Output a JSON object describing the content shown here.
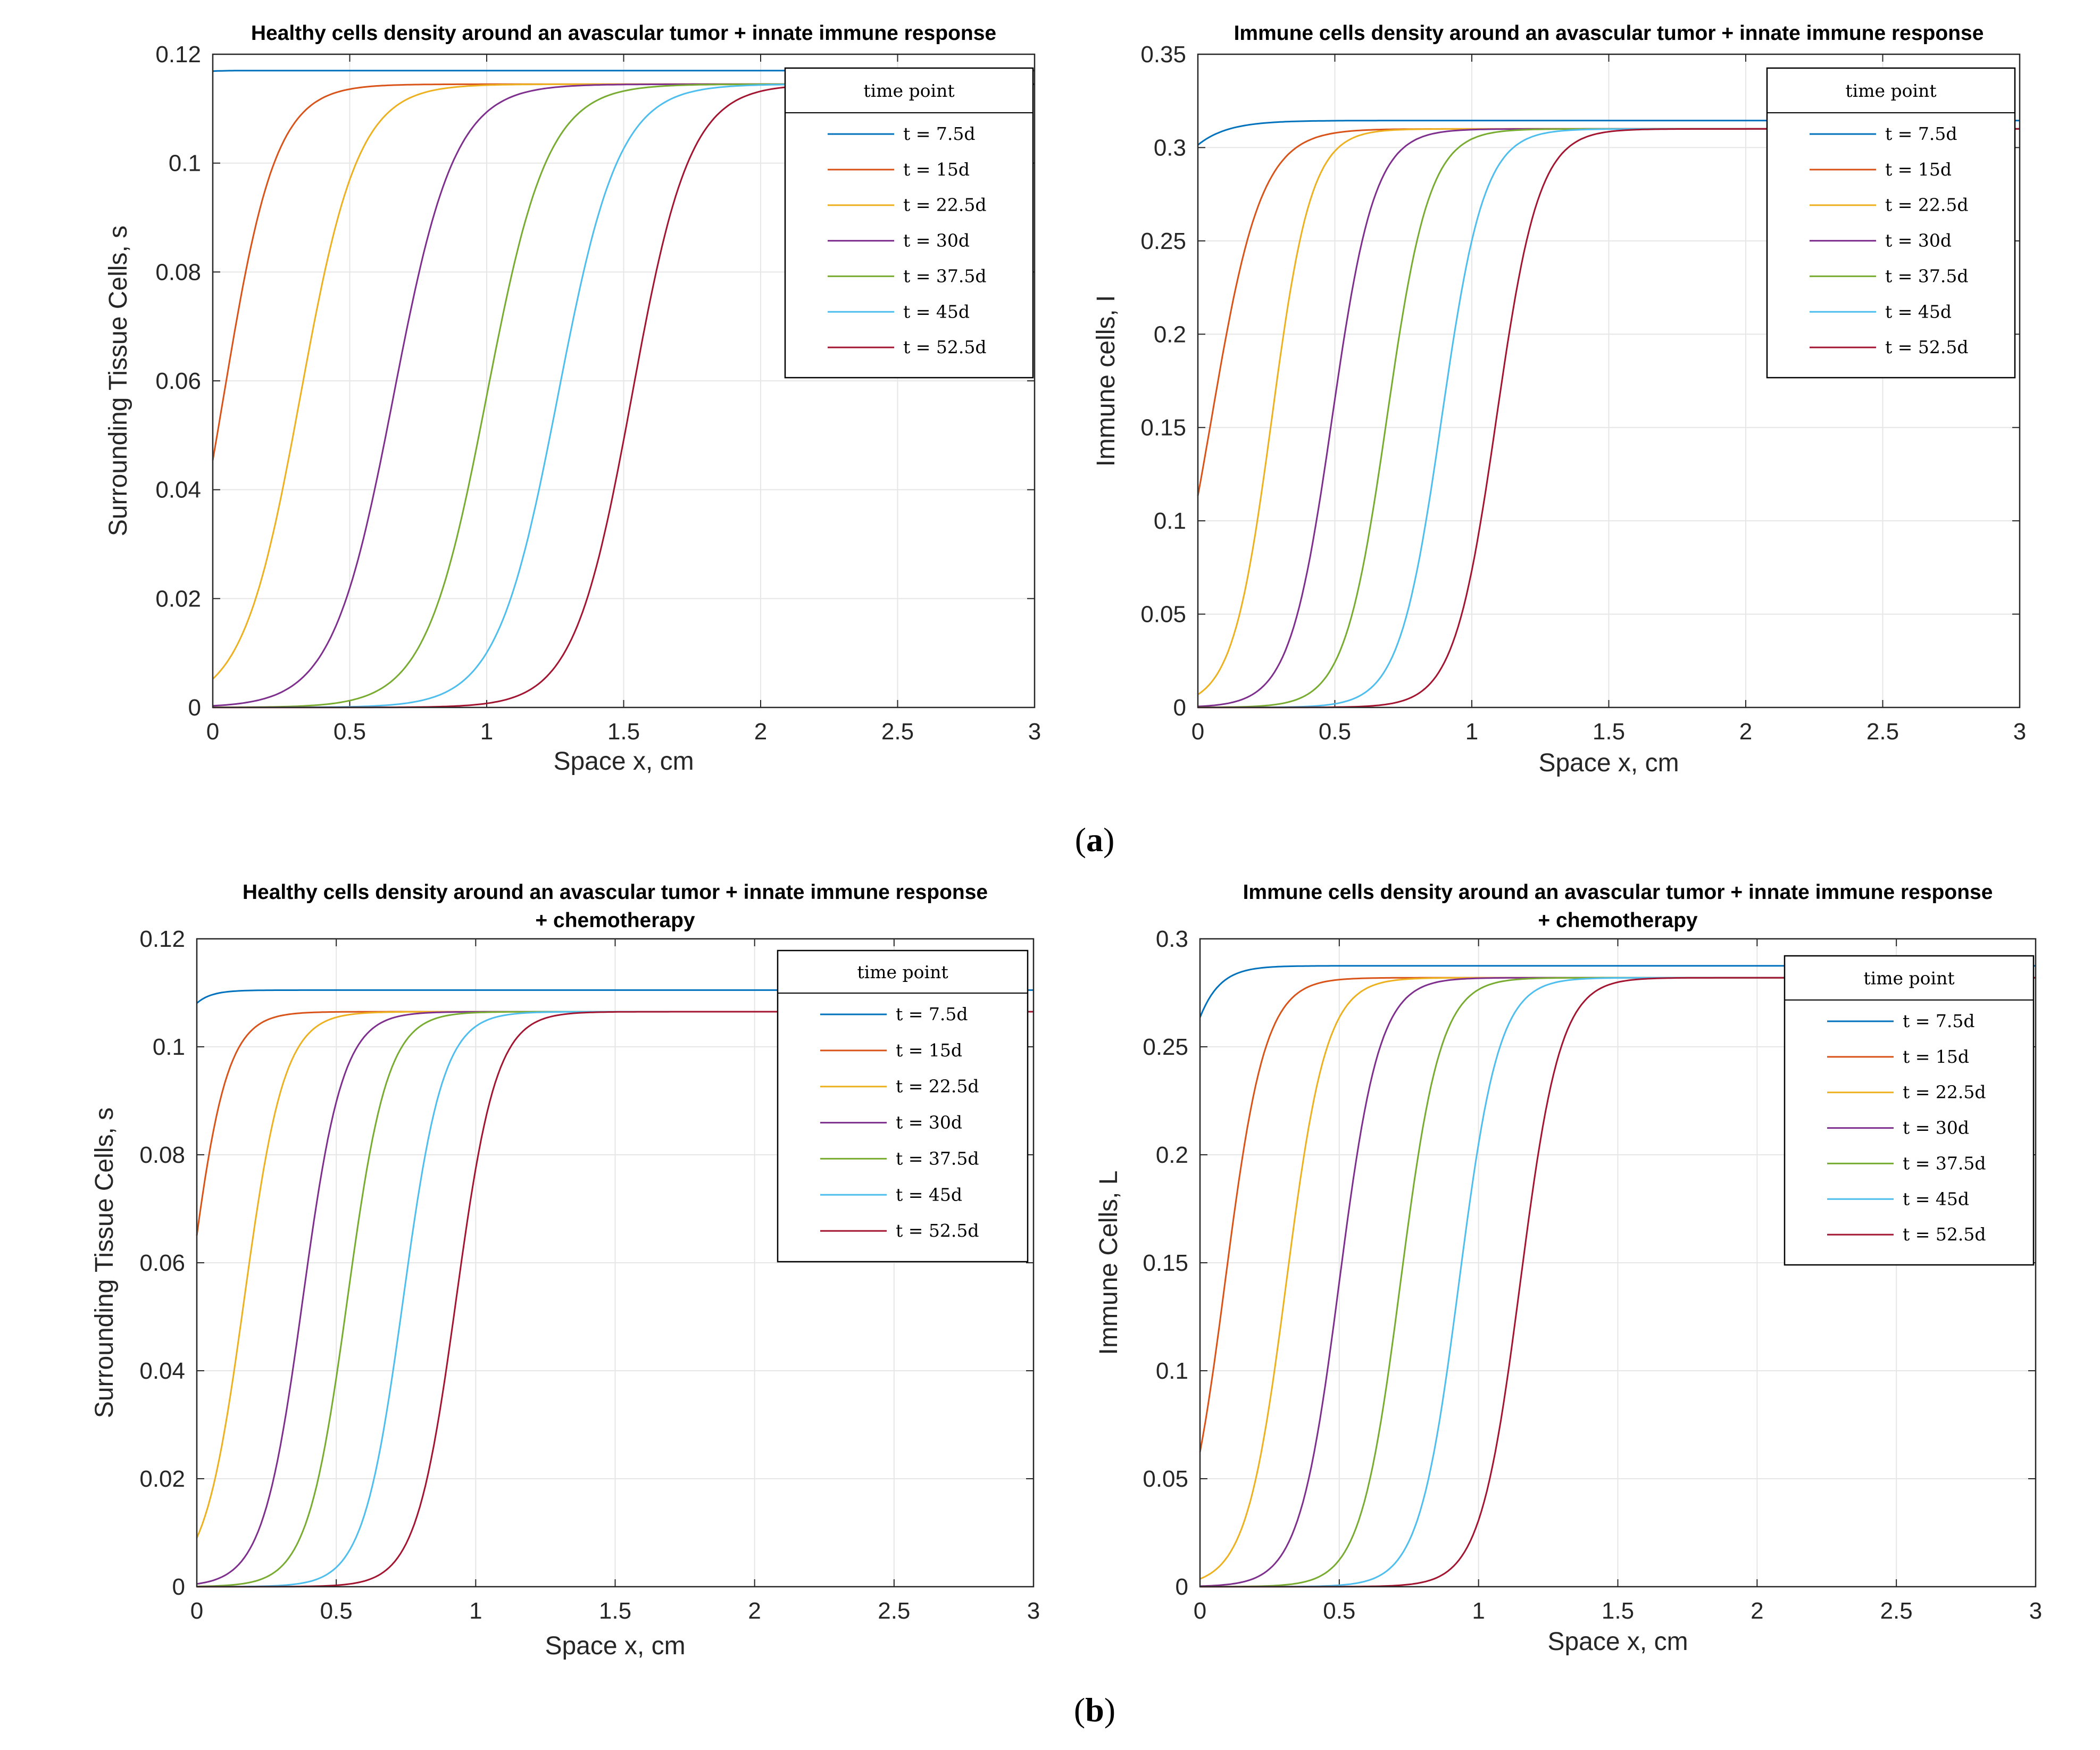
{
  "colors": {
    "series": [
      "#0072BD",
      "#D95319",
      "#EDB120",
      "#7E2F8E",
      "#77AC30",
      "#4DBEEE",
      "#A2142F"
    ],
    "grid": "#e6e6e6",
    "axis": "#262626"
  },
  "panel_labels": {
    "a": "a",
    "b": "b"
  },
  "legend_title": "time point",
  "legend_labels": [
    "t = 7.5d",
    "t = 15d",
    "t = 22.5d",
    "t = 30d",
    "t = 37.5d",
    "t = 45d",
    "t = 52.5d"
  ],
  "chart_data": [
    {
      "id": "a-left",
      "type": "line",
      "title_lines": [
        "Healthy cells density around an avascular tumor + innate immune response"
      ],
      "xlabel": "Space x, cm",
      "ylabel": "Surrounding Tissue Cells, s",
      "xlim": [
        0,
        3
      ],
      "ylim": [
        0,
        0.12
      ],
      "xticks": [
        "0",
        "0.5",
        "1",
        "1.5",
        "2",
        "2.5",
        "3"
      ],
      "yticks": [
        "0",
        "0.02",
        "0.04",
        "0.06",
        "0.08",
        "0.1",
        "0.12"
      ],
      "grid": true,
      "legend_position": "top-right",
      "series": [
        {
          "name": "t = 7.5d",
          "x0": -0.25,
          "k": 28,
          "plateau": 0.117
        },
        {
          "name": "t = 15d",
          "x0": 0.04,
          "k": 10.5,
          "plateau": 0.1145
        },
        {
          "name": "t = 22.5d",
          "x0": 0.32,
          "k": 9.5,
          "plateau": 0.1145
        },
        {
          "name": "t = 30d",
          "x0": 0.66,
          "k": 9.0,
          "plateau": 0.1145
        },
        {
          "name": "t = 37.5d",
          "x0": 1.0,
          "k": 9.0,
          "plateau": 0.1145
        },
        {
          "name": "t = 45d",
          "x0": 1.26,
          "k": 9.0,
          "plateau": 0.1145
        },
        {
          "name": "t = 52.5d",
          "x0": 1.53,
          "k": 9.5,
          "plateau": 0.1145
        }
      ]
    },
    {
      "id": "a-right",
      "type": "line",
      "title_lines": [
        "Immune cells density around an avascular tumor + innate immune response"
      ],
      "xlabel": "Space x, cm",
      "ylabel": "Immune cells, I",
      "xlim": [
        0,
        3
      ],
      "ylim": [
        0,
        0.35
      ],
      "xticks": [
        "0",
        "0.5",
        "1",
        "1.5",
        "2",
        "2.5",
        "3"
      ],
      "yticks": [
        "0",
        "0.05",
        "0.1",
        "0.15",
        "0.2",
        "0.25",
        "0.3",
        "0.35"
      ],
      "grid": true,
      "legend_position": "top-right",
      "series": [
        {
          "name": "t = 7.5d",
          "x0": -0.33,
          "k": 9.5,
          "plateau": 0.3145
        },
        {
          "name": "t = 15d",
          "x0": 0.05,
          "k": 11,
          "plateau": 0.31
        },
        {
          "name": "t = 22.5d",
          "x0": 0.27,
          "k": 14,
          "plateau": 0.31
        },
        {
          "name": "t = 30d",
          "x0": 0.49,
          "k": 13,
          "plateau": 0.31
        },
        {
          "name": "t = 37.5d",
          "x0": 0.69,
          "k": 13,
          "plateau": 0.31
        },
        {
          "name": "t = 45d",
          "x0": 0.89,
          "k": 13,
          "plateau": 0.31
        },
        {
          "name": "t = 52.5d",
          "x0": 1.09,
          "k": 13,
          "plateau": 0.31
        }
      ]
    },
    {
      "id": "b-left",
      "type": "line",
      "title_lines": [
        "Healthy cells density around an avascular tumor + innate immune response",
        "+ chemotherapy"
      ],
      "xlabel": "Space x, cm",
      "ylabel": "Surrounding Tissue Cells, s",
      "xlim": [
        0,
        3
      ],
      "ylim": [
        0,
        0.12
      ],
      "xticks": [
        "0",
        "0.5",
        "1",
        "1.5",
        "2",
        "2.5",
        "3"
      ],
      "yticks": [
        "0",
        "0.02",
        "0.04",
        "0.06",
        "0.08",
        "0.1",
        "0.12"
      ],
      "grid": true,
      "legend_position": "top-right",
      "series": [
        {
          "name": "t = 7.5d",
          "x0": -0.2,
          "k": 19,
          "plateau": 0.1105
        },
        {
          "name": "t = 15d",
          "x0": -0.03,
          "k": 15,
          "plateau": 0.1065
        },
        {
          "name": "t = 22.5d",
          "x0": 0.17,
          "k": 14,
          "plateau": 0.1065
        },
        {
          "name": "t = 30d",
          "x0": 0.38,
          "k": 14,
          "plateau": 0.1065
        },
        {
          "name": "t = 37.5d",
          "x0": 0.54,
          "k": 14,
          "plateau": 0.1065
        },
        {
          "name": "t = 45d",
          "x0": 0.74,
          "k": 14,
          "plateau": 0.1065
        },
        {
          "name": "t = 52.5d",
          "x0": 0.93,
          "k": 14,
          "plateau": 0.1065
        }
      ]
    },
    {
      "id": "b-right",
      "type": "line",
      "title_lines": [
        "Immune cells density around an avascular tumor + innate immune response",
        "+ chemotherapy"
      ],
      "xlabel": "Space x, cm",
      "ylabel": "Immune Cells, L",
      "xlim": [
        0,
        3
      ],
      "ylim": [
        0,
        0.3
      ],
      "xticks": [
        "0",
        "0.5",
        "1",
        "1.5",
        "2",
        "2.5",
        "3"
      ],
      "yticks": [
        "0",
        "0.05",
        "0.1",
        "0.15",
        "0.2",
        "0.25",
        "0.3"
      ],
      "grid": true,
      "legend_position": "top-right",
      "series": [
        {
          "name": "t = 7.5d",
          "x0": -0.16,
          "k": 15,
          "plateau": 0.2875
        },
        {
          "name": "t = 15d",
          "x0": 0.09,
          "k": 14,
          "plateau": 0.282
        },
        {
          "name": "t = 22.5d",
          "x0": 0.31,
          "k": 14,
          "plateau": 0.282
        },
        {
          "name": "t = 30d",
          "x0": 0.5,
          "k": 14,
          "plateau": 0.282
        },
        {
          "name": "t = 37.5d",
          "x0": 0.72,
          "k": 14,
          "plateau": 0.282
        },
        {
          "name": "t = 45d",
          "x0": 0.93,
          "k": 14,
          "plateau": 0.282
        },
        {
          "name": "t = 52.5d",
          "x0": 1.15,
          "k": 14,
          "plateau": 0.282
        }
      ]
    }
  ]
}
